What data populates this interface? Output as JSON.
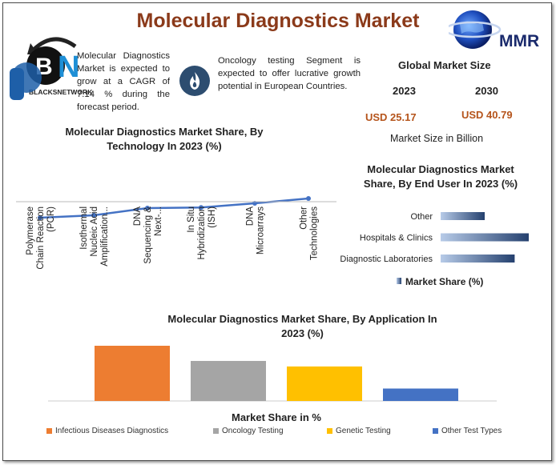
{
  "header": {
    "title": "Molecular Diagnostics Market",
    "mmr_logo_text": "MMR",
    "bn_logo_text": "BLACKSNETWORK"
  },
  "facts": [
    {
      "icon": "growth-icon",
      "text": "Molecular Diagnostics Market is expected to grow at a CAGR of 7.14 % during the forecast period."
    },
    {
      "icon": "flame-icon",
      "text": "Oncology testing Segment is expected to offer lucrative growth potential in European Countries."
    }
  ],
  "global_market": {
    "title": "Global Market Size",
    "year_start": "2023",
    "year_end": "2030",
    "value_start": "USD 25.17",
    "value_end": "USD 40.79",
    "unit": "Market Size in Billion"
  },
  "colors": {
    "title": "#8b3a1a",
    "value": "#b5541b",
    "line": "#4472c4",
    "icon_bg": "#2d4d70"
  },
  "chart_data": [
    {
      "type": "line",
      "title": "Molecular Diagnostics Market Share, By Technology In 2023 (%)",
      "categories": [
        "Polymerase Chain Reaction (PCR)",
        "Isothermal Nucleic Acid Amplification...",
        "DNA Sequencing & Next-...",
        "In Situ Hybridization (ISH)",
        "DNA Microarrays",
        "Other Technologies"
      ],
      "category_lines": [
        [
          "Polymerase",
          "Chain Reaction",
          "(PCR)"
        ],
        [
          "Isothermal",
          "Nucleic Acid",
          "Amplification..."
        ],
        [
          "DNA",
          "Sequencing &",
          "Next-..."
        ],
        [
          "In Situ",
          "Hybridization",
          "(ISH)"
        ],
        [
          "DNA",
          "Microarrays"
        ],
        [
          "Other",
          "Technologies"
        ]
      ],
      "values": [
        20,
        22,
        28,
        28.5,
        32,
        36
      ],
      "ylim": [
        0,
        100
      ],
      "color": "#4472c4"
    },
    {
      "type": "bar",
      "orientation": "horizontal",
      "title": "Molecular Diagnostics Market Share, By End User In 2023 (%)",
      "categories": [
        "Other",
        "Hospitals & Clinics",
        "Diagnostic Laboratories"
      ],
      "values": [
        25,
        50,
        42
      ],
      "xlim": [
        0,
        50
      ],
      "legend": "Market Share (%)",
      "color": "#4472c4"
    },
    {
      "type": "bar",
      "title": "Molecular Diagnostics Market Share, By Application In 2023 (%)",
      "xlabel": "Market Share in %",
      "categories": [
        "Infectious Diseases Diagnostics",
        "Oncology Testing",
        "Genetic Testing",
        "Other Test Types"
      ],
      "values": [
        40,
        29,
        25,
        9
      ],
      "ylim": [
        0,
        40
      ],
      "colors": [
        "#ed7d31",
        "#a5a5a5",
        "#ffc000",
        "#4472c4"
      ]
    }
  ]
}
